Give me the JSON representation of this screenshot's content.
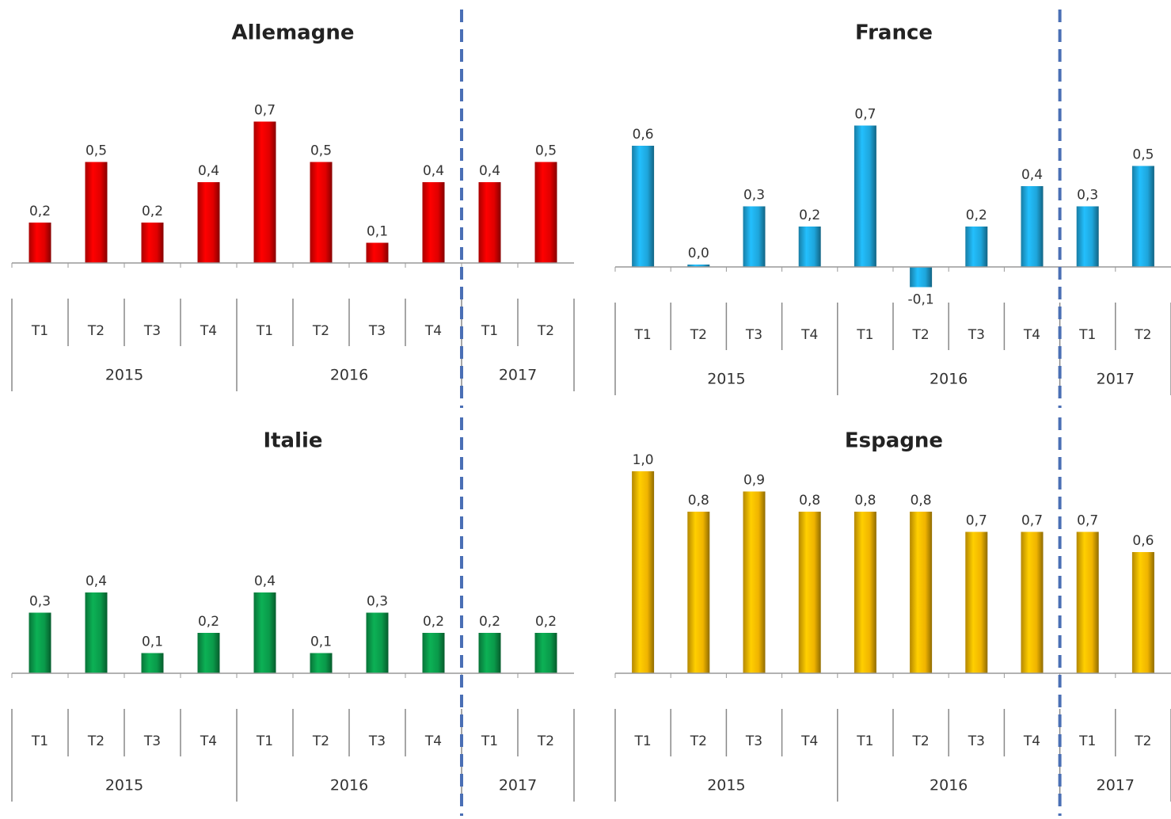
{
  "chart_data": [
    {
      "type": "bar",
      "title": "Allemagne",
      "color": "#e00000",
      "groups": [
        {
          "name": "2015",
          "categories": [
            "T1",
            "T2",
            "T3",
            "T4"
          ]
        },
        {
          "name": "2016",
          "categories": [
            "T1",
            "T2",
            "T3",
            "T4"
          ]
        },
        {
          "name": "2017",
          "categories": [
            "T1",
            "T2"
          ]
        }
      ],
      "values": [
        0.2,
        0.5,
        0.2,
        0.4,
        0.7,
        0.5,
        0.1,
        0.4,
        0.4,
        0.5
      ],
      "value_labels": [
        "0,2",
        "0,5",
        "0,2",
        "0,4",
        "0,7",
        "0,5",
        "0,1",
        "0,4",
        "0,4",
        "0,5"
      ]
    },
    {
      "type": "bar",
      "title": "France",
      "color": "#1ea6dc",
      "groups": [
        {
          "name": "2015",
          "categories": [
            "T1",
            "T2",
            "T3",
            "T4"
          ]
        },
        {
          "name": "2016",
          "categories": [
            "T1",
            "T2",
            "T3",
            "T4"
          ]
        },
        {
          "name": "2017",
          "categories": [
            "T1",
            "T2"
          ]
        }
      ],
      "values": [
        0.6,
        0.0,
        0.3,
        0.2,
        0.7,
        -0.1,
        0.2,
        0.4,
        0.3,
        0.5
      ],
      "value_labels": [
        "0,6",
        "0,0",
        "0,3",
        "0,2",
        "0,7",
        "-0,1",
        "0,2",
        "0,4",
        "0,3",
        "0,5"
      ]
    },
    {
      "type": "bar",
      "title": "Italie",
      "color": "#0a9a4a",
      "groups": [
        {
          "name": "2015",
          "categories": [
            "T1",
            "T2",
            "T3",
            "T4"
          ]
        },
        {
          "name": "2016",
          "categories": [
            "T1",
            "T2",
            "T3",
            "T4"
          ]
        },
        {
          "name": "2017",
          "categories": [
            "T1",
            "T2"
          ]
        }
      ],
      "values": [
        0.3,
        0.4,
        0.1,
        0.2,
        0.4,
        0.1,
        0.3,
        0.2,
        0.2,
        0.2
      ],
      "value_labels": [
        "0,3",
        "0,4",
        "0,1",
        "0,2",
        "0,4",
        "0,1",
        "0,3",
        "0,2",
        "0,2",
        "0,2"
      ]
    },
    {
      "type": "bar",
      "title": "Espagne",
      "color": "#f0b400",
      "groups": [
        {
          "name": "2015",
          "categories": [
            "T1",
            "T2",
            "T3",
            "T4"
          ]
        },
        {
          "name": "2016",
          "categories": [
            "T1",
            "T2",
            "T3",
            "T4"
          ]
        },
        {
          "name": "2017",
          "categories": [
            "T1",
            "T2"
          ]
        }
      ],
      "values": [
        1.0,
        0.8,
        0.9,
        0.8,
        0.8,
        0.8,
        0.7,
        0.7,
        0.7,
        0.6
      ],
      "value_labels": [
        "1,0",
        "0,8",
        "0,9",
        "0,8",
        "0,8",
        "0,8",
        "0,7",
        "0,7",
        "0,7",
        "0,6"
      ]
    }
  ]
}
